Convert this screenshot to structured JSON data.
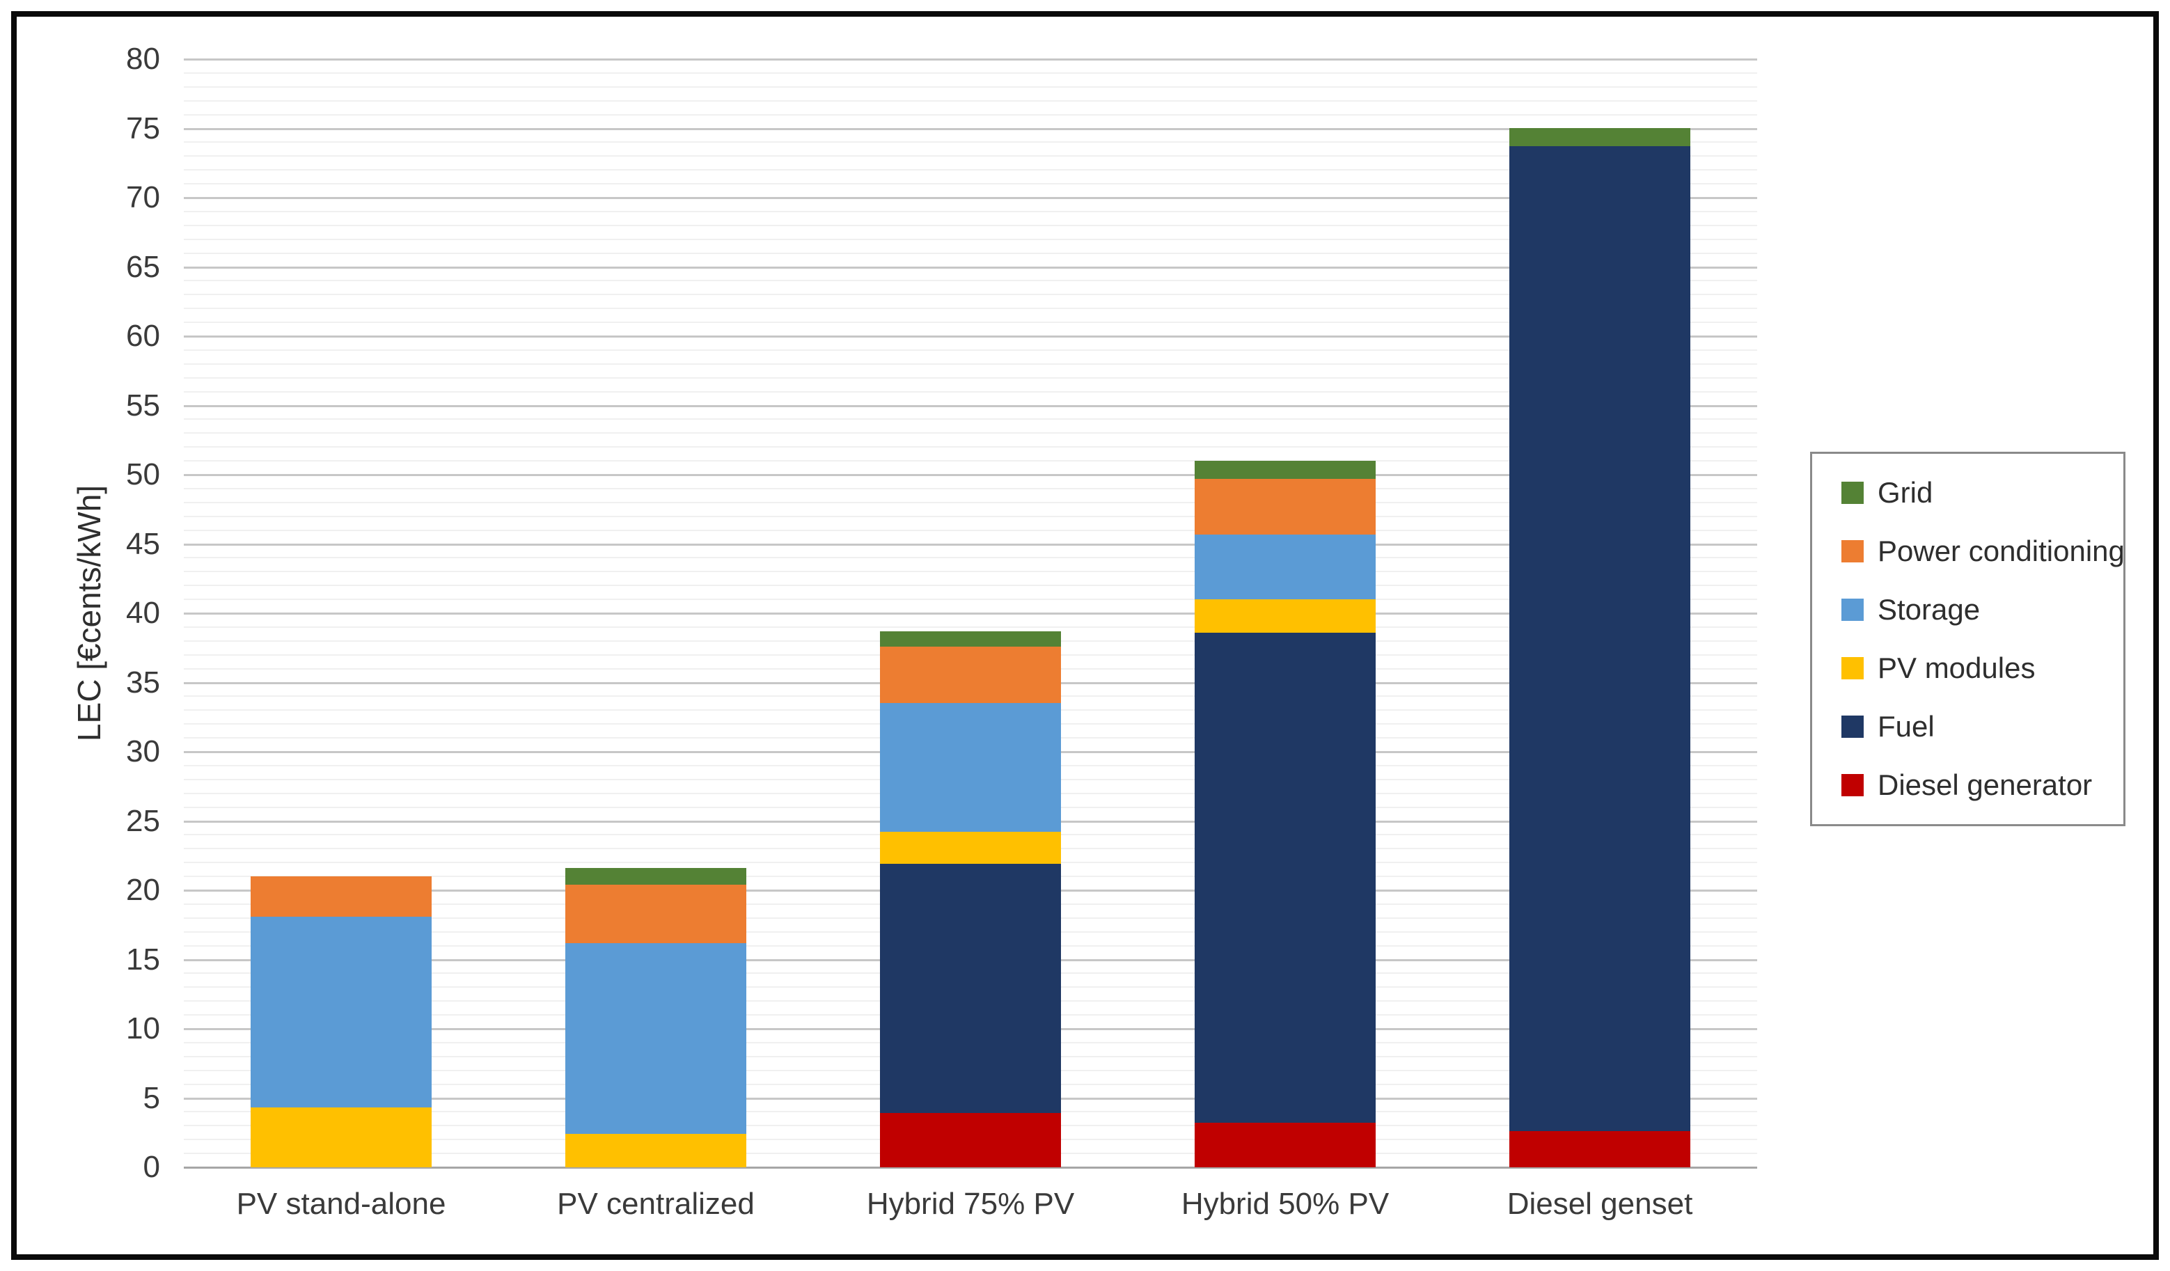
{
  "figure": {
    "background": "#ffffff",
    "border_color": "#0a0a0a"
  },
  "chart_data": {
    "type": "bar",
    "stacked": true,
    "title": "",
    "xlabel": "",
    "ylabel": "LEC [€cents/kWh]",
    "ylim": [
      0,
      80
    ],
    "y_major_step": 5,
    "y_minor_step": 1,
    "y_ticks": [
      0,
      5,
      10,
      15,
      20,
      25,
      30,
      35,
      40,
      45,
      50,
      55,
      60,
      65,
      70,
      75,
      80
    ],
    "grid": "horizontal major and minor gridlines on",
    "legend_position": "right",
    "categories": [
      "PV stand-alone",
      "PV centralized",
      "Hybrid 75% PV",
      "Hybrid 50% PV",
      "Diesel genset"
    ],
    "series": [
      {
        "name": "Diesel generator",
        "color": "#C00000",
        "values": [
          0,
          0,
          3.9,
          3.2,
          2.6
        ]
      },
      {
        "name": "Fuel",
        "color": "#1F3864",
        "values": [
          0,
          0,
          18.0,
          35.4,
          71.1
        ]
      },
      {
        "name": "PV modules",
        "color": "#FFC000",
        "values": [
          4.3,
          2.4,
          2.3,
          2.4,
          0
        ]
      },
      {
        "name": "Storage",
        "color": "#5B9BD5",
        "values": [
          13.8,
          13.8,
          9.3,
          4.7,
          0
        ]
      },
      {
        "name": "Power conditioning",
        "color": "#ED7D31",
        "values": [
          2.9,
          4.2,
          4.1,
          4.0,
          0
        ]
      },
      {
        "name": "Grid",
        "color": "#548235",
        "values": [
          0,
          1.2,
          1.1,
          1.3,
          1.3
        ]
      }
    ],
    "stack_order_bottom_to_top": [
      "Diesel generator",
      "Fuel",
      "PV modules",
      "Storage",
      "Power conditioning",
      "Grid"
    ],
    "totals": [
      21.0,
      21.6,
      38.7,
      51.0,
      75.0
    ],
    "legend_order_top_to_bottom": [
      "Grid",
      "Power conditioning",
      "Storage",
      "PV modules",
      "Fuel",
      "Diesel generator"
    ]
  }
}
